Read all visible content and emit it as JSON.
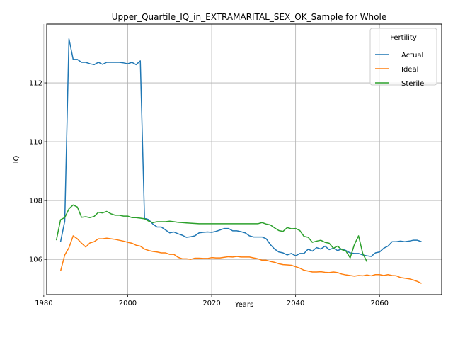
{
  "chart_data": {
    "type": "line",
    "title": "Upper_Quartile_IQ_in_EXTRAMARITAL_SEX_OK_Sample for Whole",
    "xlabel": "Years",
    "ylabel": "IQ",
    "xlim": [
      1980.7,
      2074.8
    ],
    "ylim": [
      104.8,
      114.0
    ],
    "xticks": [
      1980,
      2000,
      2020,
      2040,
      2060
    ],
    "yticks": [
      106,
      108,
      110,
      112
    ],
    "grid": true,
    "legend": {
      "title": "Fertility",
      "placement": "top-right",
      "entries": [
        "Actual",
        "Ideal",
        "Sterile"
      ]
    },
    "series": [
      {
        "name": "Actual",
        "color": "#1f77b4",
        "x": [
          1984,
          1985,
          1986,
          1987,
          1988,
          1989,
          1990,
          1991,
          1992,
          1993,
          1994,
          1995,
          1996,
          1997,
          1998,
          1999,
          2000,
          2001,
          2002,
          2003,
          2004,
          2005,
          2006,
          2007,
          2008,
          2009,
          2010,
          2011,
          2012,
          2013,
          2014,
          2015,
          2016,
          2017,
          2018,
          2019,
          2020,
          2021,
          2022,
          2023,
          2024,
          2025,
          2026,
          2027,
          2028,
          2029,
          2030,
          2031,
          2032,
          2033,
          2034,
          2035,
          2036,
          2037,
          2038,
          2039,
          2040,
          2041,
          2042,
          2043,
          2044,
          2045,
          2046,
          2047,
          2048,
          2049,
          2050,
          2051,
          2052,
          2053,
          2054,
          2055,
          2056,
          2057,
          2058,
          2059,
          2060,
          2061,
          2062,
          2063,
          2064,
          2065,
          2066,
          2067,
          2068,
          2069,
          2070
        ],
        "y": [
          106.6,
          107.3,
          113.5,
          112.8,
          112.8,
          112.7,
          112.7,
          112.65,
          112.62,
          112.7,
          112.63,
          112.7,
          112.7,
          112.7,
          112.7,
          112.68,
          112.65,
          112.7,
          112.62,
          112.75,
          107.4,
          107.35,
          107.2,
          107.1,
          107.1,
          107.0,
          106.9,
          106.93,
          106.87,
          106.82,
          106.75,
          106.77,
          106.8,
          106.9,
          106.92,
          106.93,
          106.92,
          106.95,
          107.0,
          107.05,
          107.05,
          106.97,
          106.97,
          106.94,
          106.9,
          106.8,
          106.76,
          106.76,
          106.76,
          106.7,
          106.5,
          106.35,
          106.25,
          106.22,
          106.15,
          106.2,
          106.12,
          106.2,
          106.2,
          106.35,
          106.28,
          106.4,
          106.35,
          106.45,
          106.33,
          106.38,
          106.3,
          106.35,
          106.3,
          106.22,
          106.2,
          106.2,
          106.15,
          106.12,
          106.1,
          106.22,
          106.25,
          106.38,
          106.45,
          106.6,
          106.6,
          106.62,
          106.6,
          106.62,
          106.65,
          106.65,
          106.6
        ]
      },
      {
        "name": "Ideal",
        "color": "#ff7f0e",
        "x": [
          1984,
          1985,
          1986,
          1987,
          1988,
          1989,
          1990,
          1991,
          1992,
          1993,
          1994,
          1995,
          1996,
          1997,
          1998,
          1999,
          2000,
          2001,
          2002,
          2003,
          2004,
          2005,
          2006,
          2007,
          2008,
          2009,
          2010,
          2011,
          2012,
          2013,
          2014,
          2015,
          2016,
          2017,
          2018,
          2019,
          2020,
          2021,
          2022,
          2023,
          2024,
          2025,
          2026,
          2027,
          2028,
          2029,
          2030,
          2031,
          2032,
          2033,
          2034,
          2035,
          2036,
          2037,
          2038,
          2039,
          2040,
          2041,
          2042,
          2043,
          2044,
          2045,
          2046,
          2047,
          2048,
          2049,
          2050,
          2051,
          2052,
          2053,
          2054,
          2055,
          2056,
          2057,
          2058,
          2059,
          2060,
          2061,
          2062,
          2063,
          2064,
          2065,
          2066,
          2067,
          2068,
          2069,
          2070
        ],
        "y": [
          105.6,
          106.15,
          106.4,
          106.8,
          106.7,
          106.55,
          106.42,
          106.56,
          106.6,
          106.7,
          106.7,
          106.72,
          106.7,
          106.68,
          106.65,
          106.62,
          106.58,
          106.55,
          106.48,
          106.45,
          106.35,
          106.3,
          106.27,
          106.25,
          106.22,
          106.22,
          106.17,
          106.17,
          106.07,
          106.02,
          106.02,
          106.0,
          106.04,
          106.04,
          106.03,
          106.03,
          106.06,
          106.05,
          106.05,
          106.07,
          106.09,
          106.08,
          106.1,
          106.08,
          106.08,
          106.08,
          106.05,
          106.02,
          105.97,
          105.97,
          105.93,
          105.9,
          105.85,
          105.82,
          105.81,
          105.8,
          105.75,
          105.7,
          105.63,
          105.6,
          105.57,
          105.57,
          105.58,
          105.56,
          105.55,
          105.57,
          105.55,
          105.5,
          105.47,
          105.45,
          105.43,
          105.45,
          105.44,
          105.47,
          105.44,
          105.48,
          105.48,
          105.45,
          105.48,
          105.45,
          105.44,
          105.38,
          105.36,
          105.34,
          105.3,
          105.25,
          105.18
        ]
      },
      {
        "name": "Sterile",
        "color": "#2ca02c",
        "x": [
          1983,
          1984,
          1985,
          1986,
          1987,
          1988,
          1989,
          1990,
          1991,
          1992,
          1993,
          1994,
          1995,
          1996,
          1997,
          1998,
          1999,
          2000,
          2001,
          2002,
          2003,
          2004,
          2005,
          2006,
          2007,
          2008,
          2009,
          2010,
          2011,
          2012,
          2013,
          2014,
          2015,
          2016,
          2017,
          2018,
          2019,
          2020,
          2021,
          2022,
          2023,
          2024,
          2025,
          2026,
          2027,
          2028,
          2029,
          2030,
          2031,
          2032,
          2033,
          2034,
          2035,
          2036,
          2037,
          2038,
          2039,
          2040,
          2041,
          2042,
          2043,
          2044,
          2045,
          2046,
          2047,
          2048,
          2049,
          2050,
          2051,
          2052,
          2053,
          2054,
          2055,
          2056,
          2057
        ],
        "y": [
          106.65,
          107.35,
          107.42,
          107.72,
          107.85,
          107.78,
          107.43,
          107.45,
          107.42,
          107.46,
          107.6,
          107.58,
          107.63,
          107.55,
          107.5,
          107.5,
          107.47,
          107.47,
          107.42,
          107.42,
          107.4,
          107.38,
          107.3,
          107.25,
          107.28,
          107.28,
          107.28,
          107.3,
          107.28,
          107.26,
          107.25,
          107.24,
          107.23,
          107.22,
          107.21,
          107.21,
          107.21,
          107.21,
          107.21,
          107.21,
          107.21,
          107.21,
          107.21,
          107.21,
          107.21,
          107.21,
          107.21,
          107.21,
          107.21,
          107.25,
          107.2,
          107.17,
          107.07,
          106.98,
          106.95,
          107.08,
          107.04,
          107.05,
          106.98,
          106.78,
          106.75,
          106.58,
          106.62,
          106.65,
          106.58,
          106.55,
          106.38,
          106.45,
          106.33,
          106.28,
          106.05,
          106.5,
          106.8,
          106.2,
          105.92
        ]
      }
    ]
  }
}
